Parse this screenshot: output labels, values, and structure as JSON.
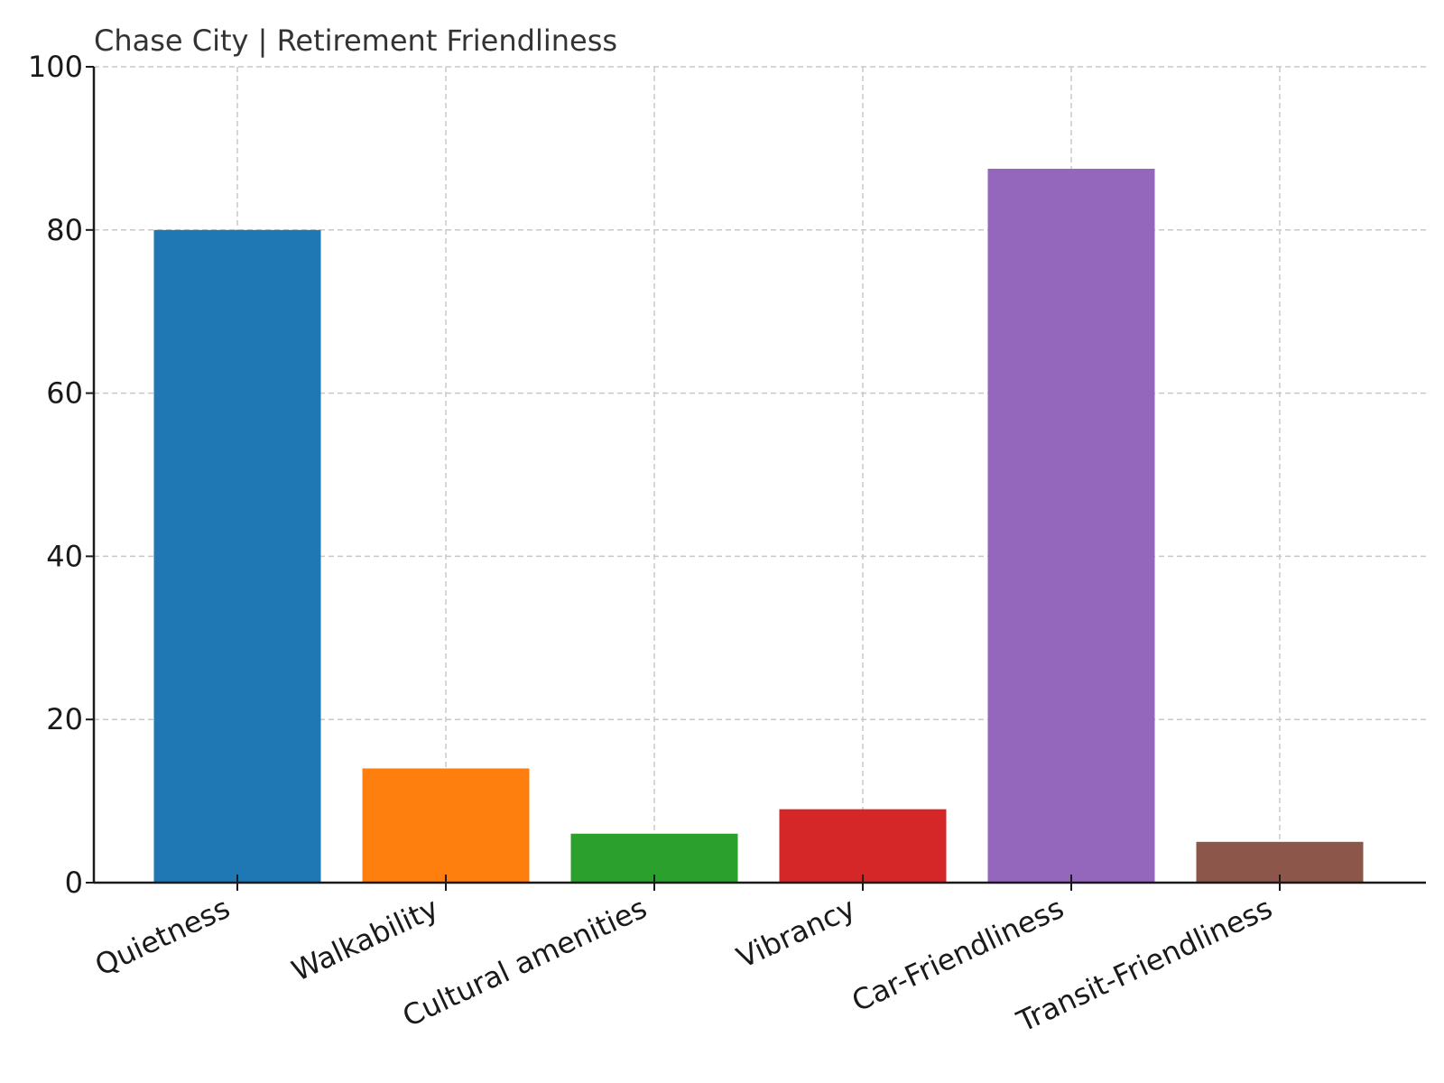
{
  "chart_data": {
    "type": "bar",
    "title": "Chase City | Retirement Friendliness",
    "xlabel": "",
    "ylabel": "",
    "categories": [
      "Quietness",
      "Walkability",
      "Cultural amenities",
      "Vibrancy",
      "Car-Friendliness",
      "Transit-Friendliness"
    ],
    "values": [
      80,
      14,
      6,
      9,
      87.5,
      5
    ],
    "colors": [
      "#1f77b4",
      "#ff7f0e",
      "#2ca02c",
      "#d62728",
      "#9467bd",
      "#8c564b"
    ],
    "ylim": [
      0,
      100
    ],
    "yticks": [
      "0",
      "20",
      "40",
      "60",
      "80",
      "100"
    ],
    "grid": true,
    "legend": "none"
  }
}
